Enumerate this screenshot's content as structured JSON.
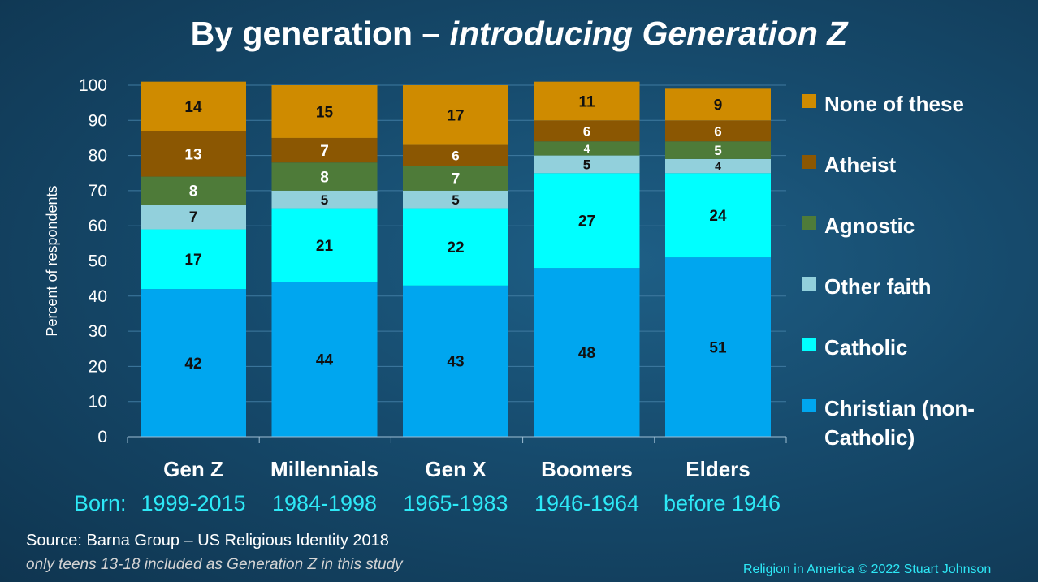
{
  "title": {
    "plain": "By generation – ",
    "italic": "introducing Generation Z"
  },
  "born_prefix": "Born:",
  "source": "Source: Barna Group – US Religious Identity 2018",
  "note": "only teens 13-18 included as Generation Z in this study",
  "credit": "Religion in America © 2022 Stuart Johnson",
  "chart_data": {
    "type": "bar",
    "stacked": true,
    "title": "By generation – introducing Generation Z",
    "ylabel": "Percent of respondents",
    "xlabel": "",
    "ylim": [
      0,
      100
    ],
    "yticks": [
      0,
      10,
      20,
      30,
      40,
      50,
      60,
      70,
      80,
      90,
      100
    ],
    "grid": true,
    "legend_position": "right",
    "categories": [
      "Gen Z",
      "Millennials",
      "Gen X",
      "Boomers",
      "Elders"
    ],
    "born": [
      "1999-2015",
      "1984-1998",
      "1965-1983",
      "1946-1964",
      "before 1946"
    ],
    "series": [
      {
        "name": "Christian (non-Catholic)",
        "color": "#00a6ef",
        "values": [
          42,
          44,
          43,
          48,
          51
        ]
      },
      {
        "name": "Catholic",
        "color": "#00ffff",
        "values": [
          17,
          21,
          22,
          27,
          24
        ]
      },
      {
        "name": "Other faith",
        "color": "#92d0dc",
        "values": [
          7,
          5,
          5,
          5,
          4
        ]
      },
      {
        "name": "Agnostic",
        "color": "#4e7b39",
        "values": [
          8,
          8,
          7,
          4,
          5
        ]
      },
      {
        "name": "Atheist",
        "color": "#8b5702",
        "values": [
          13,
          7,
          6,
          6,
          6
        ]
      },
      {
        "name": "None of these",
        "color": "#cf8b00",
        "values": [
          14,
          15,
          17,
          11,
          9
        ]
      }
    ]
  }
}
